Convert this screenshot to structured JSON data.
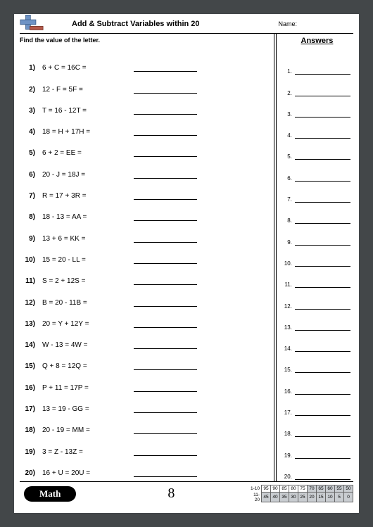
{
  "header": {
    "title": "Add & Subtract Variables within 20",
    "name_label": "Name:"
  },
  "instruction": "Find the value of the letter.",
  "problems": [
    {
      "n": "1)",
      "text": "6 + C = 16C ="
    },
    {
      "n": "2)",
      "text": "12 - F = 5F ="
    },
    {
      "n": "3)",
      "text": "T = 16 - 12T ="
    },
    {
      "n": "4)",
      "text": "18 = H + 17H ="
    },
    {
      "n": "5)",
      "text": "6 + 2 = EE ="
    },
    {
      "n": "6)",
      "text": "20 - J = 18J ="
    },
    {
      "n": "7)",
      "text": "R = 17 + 3R ="
    },
    {
      "n": "8)",
      "text": "18 - 13 = AA ="
    },
    {
      "n": "9)",
      "text": "13 + 6 = KK ="
    },
    {
      "n": "10)",
      "text": "15 = 20 - LL ="
    },
    {
      "n": "11)",
      "text": "S = 2 + 12S ="
    },
    {
      "n": "12)",
      "text": "B = 20 - 11B ="
    },
    {
      "n": "13)",
      "text": "20 = Y + 12Y ="
    },
    {
      "n": "14)",
      "text": "W - 13 = 4W ="
    },
    {
      "n": "15)",
      "text": "Q + 8 = 12Q ="
    },
    {
      "n": "16)",
      "text": "P + 11 = 17P ="
    },
    {
      "n": "17)",
      "text": "13 = 19 - GG ="
    },
    {
      "n": "18)",
      "text": "20 - 19 = MM ="
    },
    {
      "n": "19)",
      "text": "3 = Z - 13Z ="
    },
    {
      "n": "20)",
      "text": "16 + U = 20U ="
    }
  ],
  "answers_title": "Answers",
  "answers_count": 20,
  "footer": {
    "math_label": "Math",
    "page_number": "8"
  },
  "score_grid": {
    "row1_label": "1-10",
    "row2_label": "11-20",
    "row1": [
      "95",
      "90",
      "85",
      "80",
      "75",
      "70",
      "65",
      "60",
      "55",
      "50"
    ],
    "row2": [
      "45",
      "40",
      "35",
      "30",
      "25",
      "20",
      "15",
      "10",
      "5",
      "0"
    ],
    "row1_shaded_from": 5,
    "row2_shaded_from": 0
  }
}
